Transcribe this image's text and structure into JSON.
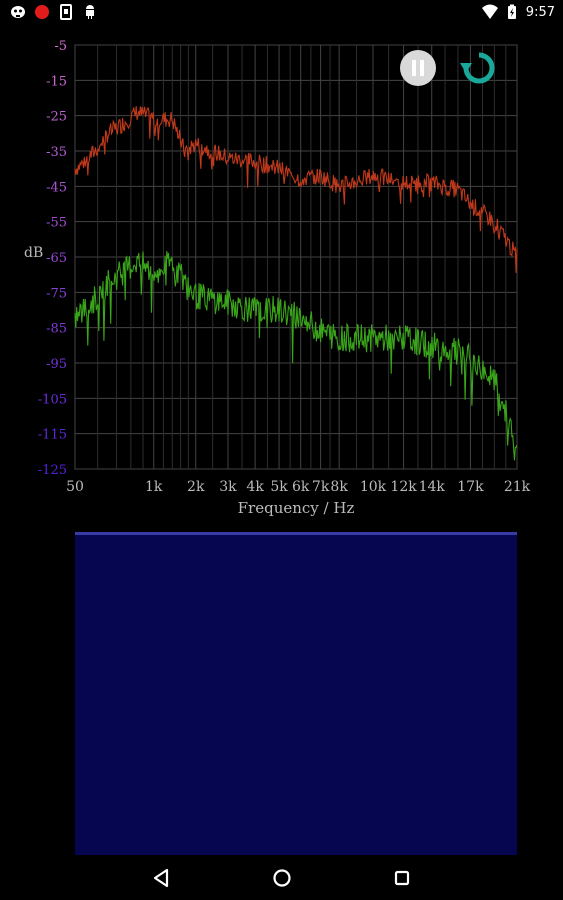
{
  "status_bar": {
    "time": "9:57",
    "icons_left": [
      "mask-icon",
      "record-dot-icon",
      "sim-card-icon",
      "android-icon"
    ],
    "icons_right": [
      "wifi-icon",
      "battery-icon"
    ],
    "record_color": "#e41b1b"
  },
  "spectrum": {
    "y_axis_label": "dB",
    "x_axis_label": "Frequency / Hz",
    "y_ticks": [
      "-5",
      "-15",
      "-25",
      "-35",
      "-45",
      "-55",
      "-65",
      "-75",
      "-85",
      "-95",
      "-105",
      "-115",
      "-125"
    ],
    "x_ticks": [
      "50",
      "1k",
      "2k",
      "3k",
      "4k",
      "5k",
      "6k",
      "7k",
      "8k",
      "10k",
      "12k",
      "14k",
      "17k",
      "21k"
    ],
    "pause_icon": "pause-icon",
    "refresh_icon": "refresh-icon",
    "refresh_color": "#1aa89a"
  },
  "chart_data": {
    "type": "line",
    "xlabel": "Frequency / Hz",
    "ylabel": "dB",
    "ylim": [
      -125,
      -5
    ],
    "grid": true,
    "series": [
      {
        "color": "#c0391b",
        "x": [
          50,
          300,
          700,
          1000,
          1400,
          1700,
          2000,
          3000,
          4000,
          5000,
          6000,
          7000,
          8000,
          10000,
          12000,
          14000,
          16000,
          17000,
          19000,
          21000
        ],
        "y": [
          -40,
          -30,
          -24,
          -26,
          -26,
          -35,
          -33,
          -37,
          -38,
          -40,
          -43,
          -42,
          -45,
          -42,
          -44,
          -44,
          -46,
          -50,
          -55,
          -65
        ]
      },
      {
        "color": "#3aa51a",
        "x": [
          50,
          300,
          700,
          1000,
          1400,
          1700,
          2000,
          3000,
          4000,
          5000,
          6000,
          7000,
          8000,
          10000,
          12000,
          14000,
          16000,
          17000,
          19000,
          21000
        ],
        "y": [
          -82,
          -72,
          -66,
          -70,
          -66,
          -72,
          -76,
          -78,
          -80,
          -80,
          -82,
          -86,
          -88,
          -88,
          -88,
          -90,
          -92,
          -94,
          -100,
          -118
        ]
      }
    ]
  },
  "nav_bar": {
    "back_icon": "back-triangle-icon",
    "home_icon": "home-circle-icon",
    "recents_icon": "recents-square-icon"
  }
}
